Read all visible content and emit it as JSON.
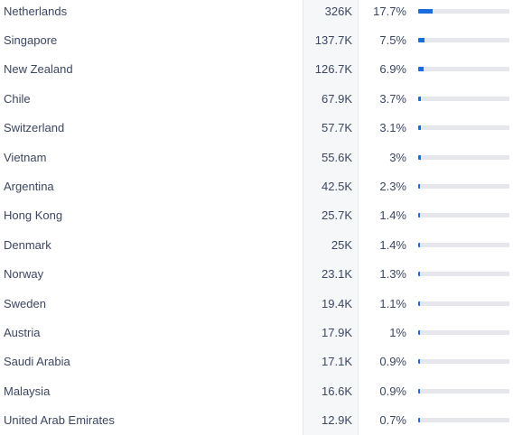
{
  "rows": [
    {
      "country": "Netherlands",
      "value": "326K",
      "percent": "17.7%",
      "share": 17.7
    },
    {
      "country": "Singapore",
      "value": "137.7K",
      "percent": "7.5%",
      "share": 7.5
    },
    {
      "country": "New Zealand",
      "value": "126.7K",
      "percent": "6.9%",
      "share": 6.9
    },
    {
      "country": "Chile",
      "value": "67.9K",
      "percent": "3.7%",
      "share": 3.7
    },
    {
      "country": "Switzerland",
      "value": "57.7K",
      "percent": "3.1%",
      "share": 3.1
    },
    {
      "country": "Vietnam",
      "value": "55.6K",
      "percent": "3%",
      "share": 3
    },
    {
      "country": "Argentina",
      "value": "42.5K",
      "percent": "2.3%",
      "share": 2.3
    },
    {
      "country": "Hong Kong",
      "value": "25.7K",
      "percent": "1.4%",
      "share": 1.4
    },
    {
      "country": "Denmark",
      "value": "25K",
      "percent": "1.4%",
      "share": 1.4
    },
    {
      "country": "Norway",
      "value": "23.1K",
      "percent": "1.3%",
      "share": 1.3
    },
    {
      "country": "Sweden",
      "value": "19.4K",
      "percent": "1.1%",
      "share": 1.1
    },
    {
      "country": "Austria",
      "value": "17.9K",
      "percent": "1%",
      "share": 1
    },
    {
      "country": "Saudi Arabia",
      "value": "17.1K",
      "percent": "0.9%",
      "share": 0.9
    },
    {
      "country": "Malaysia",
      "value": "16.6K",
      "percent": "0.9%",
      "share": 0.9
    },
    {
      "country": "United Arab Emirates",
      "value": "12.9K",
      "percent": "0.7%",
      "share": 0.7
    }
  ],
  "colors": {
    "bar_fill": "#1a6ae0",
    "bar_track": "#e5e7ec",
    "text": "#3b4661"
  }
}
